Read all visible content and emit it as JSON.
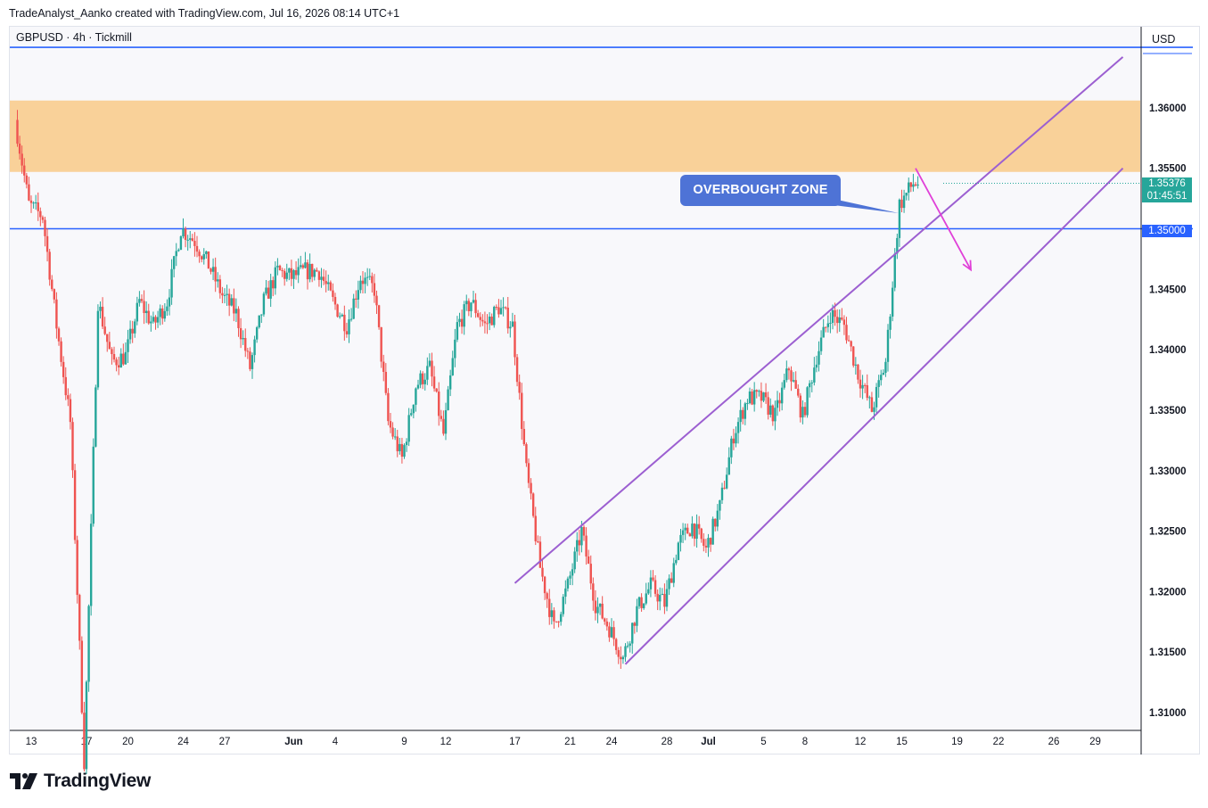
{
  "header": {
    "credit": "TradeAnalyst_Aanko created with TradingView.com, Jul 16, 2026 08:14 UTC+1"
  },
  "legend": {
    "symbol": "GBPUSD · 4h · Tickmill"
  },
  "price_axis": {
    "currency": "USD"
  },
  "annotations": {
    "callout": "OVERBOUGHT ZONE"
  },
  "last_price": {
    "value": "1.35376",
    "countdown": "01:45:51"
  },
  "level_label": "1.35000",
  "brand": {
    "name": "TradingView"
  },
  "colors": {
    "up": "#26a69a",
    "down": "#ef5350",
    "zone": "#f9d199",
    "level_line": "#2962ff",
    "channel": "#9c5fd1",
    "arrow": "#e040d8",
    "callout": "#4e73d6",
    "last_price_bg": "#26a69a"
  },
  "chart_data": {
    "type": "candlestick",
    "title": "",
    "timeframe": "4h",
    "ylim": [
      1.3086,
      1.3667
    ],
    "y_ticks": [
      "1.36000",
      "1.35500",
      "1.35000",
      "1.34500",
      "1.34000",
      "1.33500",
      "1.33000",
      "1.32500",
      "1.32000",
      "1.31500",
      "1.31000"
    ],
    "x_ticks": [
      {
        "label": "13",
        "date": "2026-05-13"
      },
      {
        "label": "17",
        "date": "2026-05-17"
      },
      {
        "label": "20",
        "date": "2026-05-20"
      },
      {
        "label": "24",
        "date": "2026-05-24"
      },
      {
        "label": "27",
        "date": "2026-05-27"
      },
      {
        "label": "Jun",
        "date": "2026-06-01",
        "bold": true
      },
      {
        "label": "4",
        "date": "2026-06-04"
      },
      {
        "label": "9",
        "date": "2026-06-09"
      },
      {
        "label": "12",
        "date": "2026-06-12"
      },
      {
        "label": "17",
        "date": "2026-06-17"
      },
      {
        "label": "21",
        "date": "2026-06-21"
      },
      {
        "label": "24",
        "date": "2026-06-24"
      },
      {
        "label": "28",
        "date": "2026-06-28"
      },
      {
        "label": "Jul",
        "date": "2026-07-01",
        "bold": true
      },
      {
        "label": "5",
        "date": "2026-07-05"
      },
      {
        "label": "8",
        "date": "2026-07-08"
      },
      {
        "label": "12",
        "date": "2026-07-12"
      },
      {
        "label": "15",
        "date": "2026-07-15"
      },
      {
        "label": "19",
        "date": "2026-07-19"
      },
      {
        "label": "22",
        "date": "2026-07-22"
      },
      {
        "label": "26",
        "date": "2026-07-26"
      },
      {
        "label": "29",
        "date": "2026-07-29"
      }
    ],
    "price_path": [
      [
        "2026-05-12",
        1.359
      ],
      [
        "2026-05-13",
        1.352
      ],
      [
        "2026-05-14",
        1.351
      ],
      [
        "2026-05-15",
        1.342
      ],
      [
        "2026-05-16",
        1.334
      ],
      [
        "2026-05-17",
        1.306
      ],
      [
        "2026-05-18",
        1.344
      ],
      [
        "2026-05-19",
        1.339
      ],
      [
        "2026-05-20",
        1.3395
      ],
      [
        "2026-05-21",
        1.344
      ],
      [
        "2026-05-22",
        1.342
      ],
      [
        "2026-05-23",
        1.344
      ],
      [
        "2026-05-24",
        1.35
      ],
      [
        "2026-05-25",
        1.349
      ],
      [
        "2026-05-26",
        1.347
      ],
      [
        "2026-05-27",
        1.3445
      ],
      [
        "2026-05-28",
        1.343
      ],
      [
        "2026-05-29",
        1.3385
      ],
      [
        "2026-05-30",
        1.344
      ],
      [
        "2026-05-31",
        1.3465
      ],
      [
        "2026-06-01",
        1.346
      ],
      [
        "2026-06-02",
        1.3465
      ],
      [
        "2026-06-03",
        1.3465
      ],
      [
        "2026-06-04",
        1.344
      ],
      [
        "2026-06-05",
        1.342
      ],
      [
        "2026-06-06",
        1.346
      ],
      [
        "2026-06-07",
        1.345
      ],
      [
        "2026-06-08",
        1.334
      ],
      [
        "2026-06-09",
        1.331
      ],
      [
        "2026-06-10",
        1.337
      ],
      [
        "2026-06-11",
        1.3385
      ],
      [
        "2026-06-12",
        1.333
      ],
      [
        "2026-06-13",
        1.342
      ],
      [
        "2026-06-14",
        1.344
      ],
      [
        "2026-06-15",
        1.342
      ],
      [
        "2026-06-16",
        1.3435
      ],
      [
        "2026-06-17",
        1.342
      ],
      [
        "2026-06-18",
        1.33
      ],
      [
        "2026-06-19",
        1.322
      ],
      [
        "2026-06-20",
        1.317
      ],
      [
        "2026-06-21",
        1.3205
      ],
      [
        "2026-06-22",
        1.325
      ],
      [
        "2026-06-23",
        1.319
      ],
      [
        "2026-06-24",
        1.317
      ],
      [
        "2026-06-25",
        1.3145
      ],
      [
        "2026-06-26",
        1.3185
      ],
      [
        "2026-06-27",
        1.3205
      ],
      [
        "2026-06-28",
        1.319
      ],
      [
        "2026-06-29",
        1.324
      ],
      [
        "2026-06-30",
        1.3255
      ],
      [
        "2026-07-01",
        1.3235
      ],
      [
        "2026-07-02",
        1.327
      ],
      [
        "2026-07-03",
        1.333
      ],
      [
        "2026-07-04",
        1.336
      ],
      [
        "2026-07-05",
        1.336
      ],
      [
        "2026-07-06",
        1.3345
      ],
      [
        "2026-07-07",
        1.3385
      ],
      [
        "2026-07-08",
        1.3345
      ],
      [
        "2026-07-09",
        1.3395
      ],
      [
        "2026-07-10",
        1.343
      ],
      [
        "2026-07-11",
        1.342
      ],
      [
        "2026-07-12",
        1.338
      ],
      [
        "2026-07-13",
        1.335
      ],
      [
        "2026-07-14",
        1.339
      ],
      [
        "2026-07-15",
        1.352
      ],
      [
        "2026-07-16",
        1.35376
      ]
    ],
    "zones": [
      {
        "from": 1.3547,
        "to": 1.3606
      }
    ],
    "horizontal_lines": [
      1.35,
      1.365
    ],
    "channel": {
      "upper": [
        [
          "2026-06-17",
          1.3207
        ],
        [
          "2026-07-31",
          1.3642
        ]
      ],
      "lower": [
        [
          "2026-06-25",
          1.314
        ],
        [
          "2026-07-31",
          1.355
        ]
      ]
    },
    "arrow": {
      "from": [
        "2026-07-16",
        1.355
      ],
      "to": [
        "2026-07-20",
        1.3466
      ]
    }
  }
}
